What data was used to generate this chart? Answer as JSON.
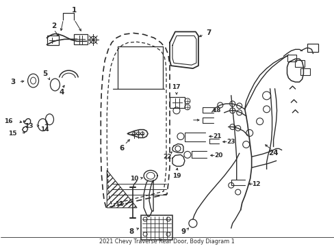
{
  "bg_color": "#ffffff",
  "line_color": "#2a2a2a",
  "fig_width": 4.89,
  "fig_height": 3.6,
  "dpi": 100,
  "title": "2021 Chevy Traverse Rear Door, Body Diagram 1",
  "title_fontsize": 6.0,
  "label_fontsize": 7.5,
  "label_fontsize_small": 6.5,
  "xlim": [
    0,
    489
  ],
  "ylim": [
    0,
    360
  ]
}
